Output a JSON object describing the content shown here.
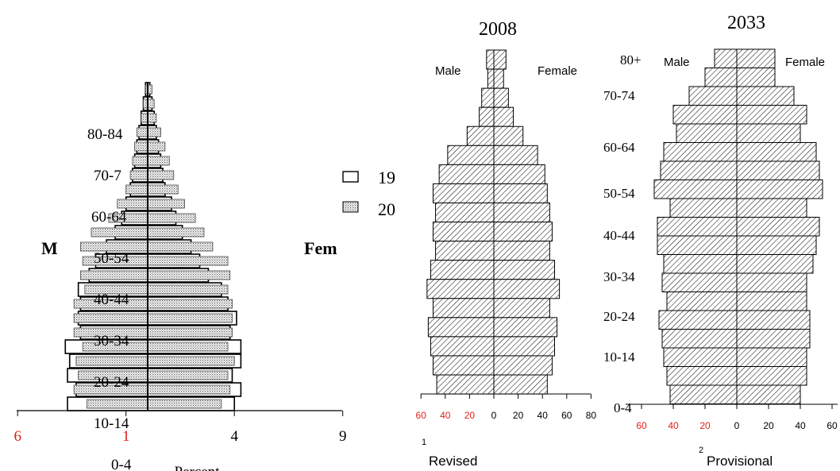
{
  "chart_data": [
    {
      "type": "bar",
      "subtype": "population-pyramid",
      "male_label": "M",
      "female_label": "Fem",
      "xlabel": "Percent",
      "age_labels": [
        "80-84",
        "70-7",
        "60-64",
        "50-54",
        "40-44",
        "30-34",
        "20-24",
        "10-14",
        "0-4"
      ],
      "x_ticks": [
        {
          "label": "6",
          "value": -6,
          "color": "#e0201b"
        },
        {
          "label": "1",
          "value": -1,
          "color": "#e0201b"
        },
        {
          "label": "4",
          "value": 4,
          "color": "#000000"
        },
        {
          "label": "9",
          "value": 9,
          "color": "#000000"
        }
      ],
      "xlim": [
        -6,
        9
      ],
      "legend": [
        {
          "label": "19",
          "pattern": "white"
        },
        {
          "label": "20",
          "pattern": "dotted"
        }
      ],
      "series": [
        {
          "pattern": "white",
          "male": [
            0.1,
            0.2,
            0.3,
            0.4,
            0.5,
            0.6,
            0.7,
            0.8,
            1.0,
            1.2,
            1.5,
            1.9,
            2.4,
            2.7,
            3.2,
            3.1,
            3.2,
            3.1,
            3.8,
            3.6,
            3.7,
            3.3,
            3.7
          ],
          "female": [
            0.1,
            0.2,
            0.3,
            0.4,
            0.5,
            0.6,
            0.7,
            0.8,
            1.1,
            1.3,
            1.6,
            2.0,
            2.4,
            2.8,
            3.4,
            3.7,
            4.1,
            3.8,
            4.3,
            4.3,
            3.9,
            4.3,
            4.0
          ]
        },
        {
          "pattern": "dotted",
          "male": [
            0.1,
            0.2,
            0.3,
            0.5,
            0.6,
            0.7,
            0.8,
            1.0,
            1.4,
            1.8,
            2.6,
            3.1,
            3.0,
            3.1,
            2.9,
            3.4,
            3.4,
            3.4,
            3.0,
            3.3,
            3.2,
            3.4,
            2.8
          ],
          "female": [
            0.2,
            0.3,
            0.4,
            0.6,
            0.8,
            1.0,
            1.2,
            1.4,
            1.7,
            2.2,
            2.6,
            3.0,
            3.7,
            3.8,
            3.7,
            3.9,
            3.9,
            3.9,
            3.7,
            4.0,
            3.7,
            3.8,
            3.4
          ]
        }
      ]
    },
    {
      "type": "bar",
      "subtype": "population-pyramid",
      "title": "2008",
      "male_label": "Male",
      "female_label": "Female",
      "footnote": "Revised",
      "footnote_mark": "1",
      "x_ticks": [
        {
          "label": "60",
          "value": -60,
          "color": "#e0201b"
        },
        {
          "label": "40",
          "value": -40,
          "color": "#e0201b"
        },
        {
          "label": "20",
          "value": -20,
          "color": "#e0201b"
        },
        {
          "label": "0",
          "value": 0,
          "color": "#000000"
        },
        {
          "label": "20",
          "value": 20,
          "color": "#000000"
        },
        {
          "label": "40",
          "value": 40,
          "color": "#000000"
        },
        {
          "label": "60",
          "value": 60,
          "color": "#000000"
        },
        {
          "label": "80",
          "value": 80,
          "color": "#000000"
        }
      ],
      "xlim": [
        -60,
        80
      ],
      "male": [
        6,
        5,
        10,
        12,
        22,
        38,
        45,
        50,
        48,
        50,
        48,
        52,
        55,
        50,
        54,
        52,
        50,
        47
      ],
      "female": [
        10,
        8,
        12,
        16,
        24,
        36,
        42,
        44,
        46,
        48,
        46,
        50,
        54,
        46,
        52,
        50,
        48,
        44
      ]
    },
    {
      "type": "bar",
      "subtype": "population-pyramid",
      "title": "2033",
      "male_label": "Male",
      "female_label": "Female",
      "footnote": "Provisional",
      "footnote_mark": "2",
      "age_labels": [
        "80+",
        "70-74",
        "60-64",
        "50-54",
        "40-44",
        "30-34",
        "20-24",
        "10-14",
        "0-4"
      ],
      "x_ticks": [
        {
          "label": "60",
          "value": -60,
          "color": "#e0201b"
        },
        {
          "label": "40",
          "value": -40,
          "color": "#e0201b"
        },
        {
          "label": "20",
          "value": -20,
          "color": "#e0201b"
        },
        {
          "label": "0",
          "value": 0,
          "color": "#000000"
        },
        {
          "label": "20",
          "value": 20,
          "color": "#000000"
        },
        {
          "label": "40",
          "value": 40,
          "color": "#000000"
        },
        {
          "label": "60",
          "value": 60,
          "color": "#000000"
        }
      ],
      "xlim": [
        -60,
        60
      ],
      "male": [
        14,
        20,
        30,
        40,
        38,
        46,
        48,
        52,
        42,
        50,
        50,
        46,
        47,
        44,
        49,
        47,
        46,
        44,
        42
      ],
      "female": [
        24,
        24,
        36,
        44,
        40,
        50,
        52,
        54,
        44,
        52,
        50,
        48,
        44,
        44,
        46,
        46,
        44,
        44,
        40
      ]
    }
  ]
}
